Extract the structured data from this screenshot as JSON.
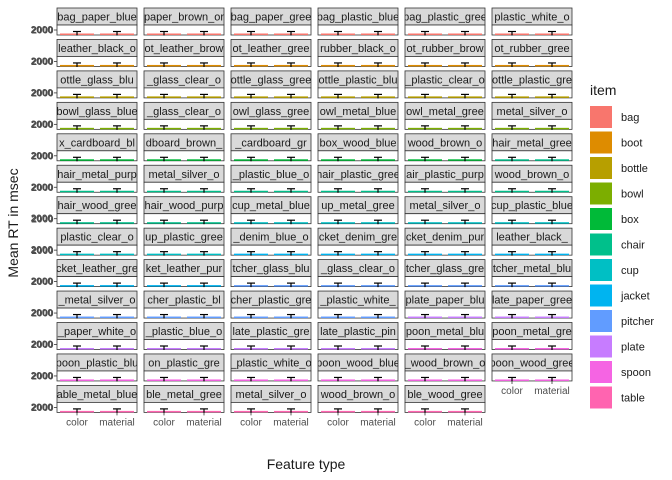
{
  "chart_data": {
    "type": "bar",
    "facet_layout": "wrap",
    "facet_columns": 6,
    "xlabel": "Feature type",
    "ylabel": "Mean RT in msec",
    "categories": [
      "color",
      "material"
    ],
    "y_tick_labels": [
      "2000"
    ],
    "y_tick_value": 2000,
    "ylim": [
      0,
      90000
    ],
    "error_bars": true,
    "grid": false,
    "legend": {
      "title": "item",
      "placement": "right"
    },
    "colors": {
      "bag": "#F8766D",
      "boot": "#DE8C00",
      "bottle": "#B79F00",
      "bowl": "#7CAE00",
      "box": "#00BA38",
      "chair": "#00C08B",
      "cup": "#00BFC4",
      "jacket": "#00B4F0",
      "pitcher": "#619CFF",
      "plate": "#C77CFF",
      "spoon": "#F564E3",
      "table": "#FF64B0"
    },
    "items": [
      "bag",
      "boot",
      "bottle",
      "bowl",
      "box",
      "chair",
      "cup",
      "jacket",
      "pitcher",
      "plate",
      "spoon",
      "table"
    ],
    "panels": [
      {
        "label": "bag_paper_blue",
        "item": "bag",
        "values": [
          2100,
          2300
        ]
      },
      {
        "label": "paper_brown_or",
        "item": "bag",
        "values": [
          2000,
          2200
        ]
      },
      {
        "label": "bag_paper_gree",
        "item": "bag",
        "values": [
          2050,
          2250
        ]
      },
      {
        "label": "bag_plastic_blue",
        "item": "bag",
        "values": [
          2000,
          2300
        ]
      },
      {
        "label": "bag_plastic_gree",
        "item": "bag",
        "values": [
          2100,
          2200
        ]
      },
      {
        "label": "plastic_white_o",
        "item": "bag",
        "values": [
          2000,
          2250
        ]
      },
      {
        "label": "leather_black_o",
        "item": "boot",
        "values": [
          2100,
          2300
        ]
      },
      {
        "label": "ot_leather_brow",
        "item": "boot",
        "values": [
          2000,
          2200
        ]
      },
      {
        "label": "ot_leather_gree",
        "item": "boot",
        "values": [
          2050,
          2250
        ]
      },
      {
        "label": "rubber_black_o",
        "item": "boot",
        "values": [
          2000,
          2300
        ]
      },
      {
        "label": "ot_rubber_brow",
        "item": "boot",
        "values": [
          2100,
          2200
        ]
      },
      {
        "label": "ot_rubber_gree",
        "item": "boot",
        "values": [
          2000,
          2250
        ]
      },
      {
        "label": "ottle_glass_blu",
        "item": "bottle",
        "values": [
          2100,
          2300
        ]
      },
      {
        "label": "_glass_clear_o",
        "item": "bottle",
        "values": [
          2000,
          2200
        ]
      },
      {
        "label": "ottle_glass_gree",
        "item": "bottle",
        "values": [
          2050,
          2250
        ]
      },
      {
        "label": "ottle_plastic_blu",
        "item": "bottle",
        "values": [
          2000,
          2300
        ]
      },
      {
        "label": "_plastic_clear_o",
        "item": "bottle",
        "values": [
          2100,
          2200
        ]
      },
      {
        "label": "ottle_plastic_gre",
        "item": "bottle",
        "values": [
          2000,
          2250
        ]
      },
      {
        "label": "bowl_glass_blue",
        "item": "bowl",
        "values": [
          2100,
          2300
        ]
      },
      {
        "label": "_glass_clear_o",
        "item": "bowl",
        "values": [
          2000,
          2200
        ]
      },
      {
        "label": "owl_glass_gree",
        "item": "bowl",
        "values": [
          2050,
          2250
        ]
      },
      {
        "label": "owl_metal_blue",
        "item": "bowl",
        "values": [
          2000,
          2300
        ]
      },
      {
        "label": "owl_metal_gree",
        "item": "bowl",
        "values": [
          2100,
          2200
        ]
      },
      {
        "label": "metal_silver_o",
        "item": "bowl",
        "values": [
          2000,
          2250
        ]
      },
      {
        "label": "x_cardboard_bl",
        "item": "box",
        "values": [
          2100,
          2300
        ]
      },
      {
        "label": "dboard_brown_",
        "item": "box",
        "values": [
          2000,
          2200
        ]
      },
      {
        "label": "_cardboard_gr",
        "item": "box",
        "values": [
          2050,
          2250
        ]
      },
      {
        "label": "box_wood_blue",
        "item": "box",
        "values": [
          2000,
          2300
        ]
      },
      {
        "label": "wood_brown_o",
        "item": "box",
        "values": [
          2100,
          2200
        ]
      },
      {
        "label": "hair_metal_gree",
        "item": "chair",
        "values": [
          2000,
          2250
        ]
      },
      {
        "label": "hair_metal_purp",
        "item": "chair",
        "values": [
          2100,
          2300
        ]
      },
      {
        "label": "metal_silver_o",
        "item": "chair",
        "values": [
          2000,
          2200
        ]
      },
      {
        "label": "_plastic_blue_o",
        "item": "chair",
        "values": [
          2050,
          2250
        ]
      },
      {
        "label": "hair_plastic_gree",
        "item": "chair",
        "values": [
          2000,
          2300
        ]
      },
      {
        "label": "air_plastic_purp",
        "item": "chair",
        "values": [
          2100,
          2200
        ]
      },
      {
        "label": "wood_brown_o",
        "item": "chair",
        "values": [
          2000,
          2250
        ]
      },
      {
        "label": "hair_wood_gree",
        "item": "chair",
        "values": [
          2100,
          2300
        ]
      },
      {
        "label": "hair_wood_purp",
        "item": "chair",
        "values": [
          2000,
          2200
        ]
      },
      {
        "label": "cup_metal_blue",
        "item": "cup",
        "values": [
          2050,
          2250
        ]
      },
      {
        "label": "up_metal_gree",
        "item": "cup",
        "values": [
          2000,
          2300
        ]
      },
      {
        "label": "metal_silver_o",
        "item": "cup",
        "values": [
          2100,
          2200
        ]
      },
      {
        "label": "cup_plastic_blue",
        "item": "cup",
        "values": [
          2000,
          2250
        ]
      },
      {
        "label": "plastic_clear_o",
        "item": "cup",
        "values": [
          2100,
          2300
        ]
      },
      {
        "label": "up_plastic_gree",
        "item": "cup",
        "values": [
          2000,
          2200
        ]
      },
      {
        "label": "_denim_blue_o",
        "item": "jacket",
        "values": [
          2050,
          2250
        ]
      },
      {
        "label": "cket_denim_gre",
        "item": "jacket",
        "values": [
          2000,
          2300
        ]
      },
      {
        "label": "cket_denim_pur",
        "item": "jacket",
        "values": [
          2100,
          2200
        ]
      },
      {
        "label": "leather_black_",
        "item": "jacket",
        "values": [
          2000,
          2250
        ]
      },
      {
        "label": "cket_leather_gre",
        "item": "jacket",
        "values": [
          2100,
          2300
        ]
      },
      {
        "label": "ket_leather_pur",
        "item": "jacket",
        "values": [
          2000,
          2200
        ]
      },
      {
        "label": "tcher_glass_blu",
        "item": "pitcher",
        "values": [
          2050,
          2250
        ]
      },
      {
        "label": "_glass_clear_o",
        "item": "pitcher",
        "values": [
          2000,
          2300
        ]
      },
      {
        "label": "tcher_glass_gre",
        "item": "pitcher",
        "values": [
          2100,
          2200
        ]
      },
      {
        "label": "tcher_metal_blu",
        "item": "pitcher",
        "values": [
          2000,
          2250
        ]
      },
      {
        "label": "_metal_silver_o",
        "item": "pitcher",
        "values": [
          2100,
          2300
        ]
      },
      {
        "label": "cher_plastic_bl",
        "item": "pitcher",
        "values": [
          2000,
          2200
        ]
      },
      {
        "label": "cher_plastic_gre",
        "item": "pitcher",
        "values": [
          2050,
          2250
        ]
      },
      {
        "label": "_plastic_white_",
        "item": "pitcher",
        "values": [
          2000,
          2300
        ]
      },
      {
        "label": "plate_paper_blu",
        "item": "plate",
        "values": [
          2100,
          2200
        ]
      },
      {
        "label": "late_paper_gree",
        "item": "plate",
        "values": [
          2000,
          2250
        ]
      },
      {
        "label": "_paper_white_o",
        "item": "plate",
        "values": [
          2100,
          2300
        ]
      },
      {
        "label": "_plastic_blue_o",
        "item": "plate",
        "values": [
          2000,
          2200
        ]
      },
      {
        "label": "late_plastic_gre",
        "item": "plate",
        "values": [
          2050,
          2250
        ]
      },
      {
        "label": "late_plastic_pin",
        "item": "plate",
        "values": [
          2000,
          2300
        ]
      },
      {
        "label": "poon_metal_blu",
        "item": "spoon",
        "values": [
          2100,
          2200
        ]
      },
      {
        "label": "poon_metal_gre",
        "item": "spoon",
        "values": [
          2000,
          2250
        ]
      },
      {
        "label": "poon_plastic_blu",
        "item": "spoon",
        "values": [
          2100,
          2300
        ]
      },
      {
        "label": "on_plastic_gre",
        "item": "spoon",
        "values": [
          2000,
          2200
        ]
      },
      {
        "label": "_plastic_white_o",
        "item": "spoon",
        "values": [
          2050,
          2250
        ]
      },
      {
        "label": "poon_wood_blue",
        "item": "spoon",
        "values": [
          2000,
          2300
        ]
      },
      {
        "label": "_wood_brown_o",
        "item": "spoon",
        "values": [
          2100,
          2200
        ]
      },
      {
        "label": "poon_wood_gree",
        "item": "spoon",
        "values": [
          2000,
          2250
        ]
      },
      {
        "label": "able_metal_blue",
        "item": "table",
        "values": [
          2100,
          2300
        ]
      },
      {
        "label": "ble_metal_gree",
        "item": "table",
        "values": [
          2000,
          2200
        ]
      },
      {
        "label": "metal_silver_o",
        "item": "table",
        "values": [
          2050,
          2250
        ]
      },
      {
        "label": "wood_brown_o",
        "item": "table",
        "values": [
          2000,
          2300
        ]
      },
      {
        "label": "ble_wood_gree",
        "item": "table",
        "values": [
          2100,
          2200
        ]
      }
    ]
  }
}
